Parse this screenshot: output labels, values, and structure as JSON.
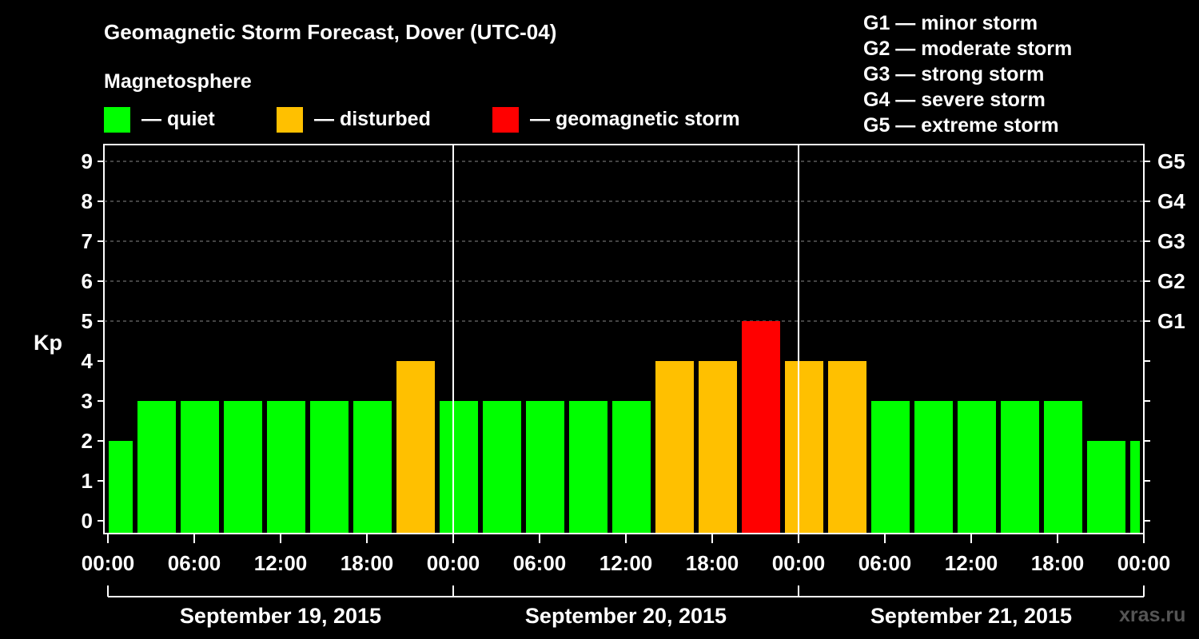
{
  "chart_data": {
    "type": "bar",
    "title": "Geomagnetic Storm Forecast, Dover (UTC-04)",
    "ylabel": "Kp",
    "ylim": [
      0,
      9
    ],
    "yticks": [
      "0",
      "1",
      "2",
      "3",
      "4",
      "5",
      "6",
      "7",
      "8",
      "9"
    ],
    "right_axis": [
      {
        "kp": 5,
        "label": "G1"
      },
      {
        "kp": 6,
        "label": "G2"
      },
      {
        "kp": 7,
        "label": "G3"
      },
      {
        "kp": 8,
        "label": "G4"
      },
      {
        "kp": 9,
        "label": "G5"
      }
    ],
    "xticks": [
      "00:00",
      "06:00",
      "12:00",
      "18:00",
      "00:00",
      "06:00",
      "12:00",
      "18:00",
      "00:00",
      "06:00",
      "12:00",
      "18:00",
      "00:00"
    ],
    "days": [
      "September 19, 2015",
      "September 20, 2015",
      "September 21, 2015"
    ],
    "hours_total": 72,
    "bars": [
      {
        "start": 0,
        "end": 2,
        "kp": 2,
        "level": "quiet"
      },
      {
        "start": 2,
        "end": 5,
        "kp": 3,
        "level": "quiet"
      },
      {
        "start": 5,
        "end": 8,
        "kp": 3,
        "level": "quiet"
      },
      {
        "start": 8,
        "end": 11,
        "kp": 3,
        "level": "quiet"
      },
      {
        "start": 11,
        "end": 14,
        "kp": 3,
        "level": "quiet"
      },
      {
        "start": 14,
        "end": 17,
        "kp": 3,
        "level": "quiet"
      },
      {
        "start": 17,
        "end": 20,
        "kp": 3,
        "level": "quiet"
      },
      {
        "start": 20,
        "end": 23,
        "kp": 4,
        "level": "disturbed"
      },
      {
        "start": 23,
        "end": 26,
        "kp": 3,
        "level": "quiet"
      },
      {
        "start": 26,
        "end": 29,
        "kp": 3,
        "level": "quiet"
      },
      {
        "start": 29,
        "end": 32,
        "kp": 3,
        "level": "quiet"
      },
      {
        "start": 32,
        "end": 35,
        "kp": 3,
        "level": "quiet"
      },
      {
        "start": 35,
        "end": 38,
        "kp": 3,
        "level": "quiet"
      },
      {
        "start": 38,
        "end": 41,
        "kp": 4,
        "level": "disturbed"
      },
      {
        "start": 41,
        "end": 44,
        "kp": 4,
        "level": "disturbed"
      },
      {
        "start": 44,
        "end": 47,
        "kp": 5,
        "level": "storm"
      },
      {
        "start": 47,
        "end": 50,
        "kp": 4,
        "level": "disturbed"
      },
      {
        "start": 50,
        "end": 53,
        "kp": 4,
        "level": "disturbed"
      },
      {
        "start": 53,
        "end": 56,
        "kp": 3,
        "level": "quiet"
      },
      {
        "start": 56,
        "end": 59,
        "kp": 3,
        "level": "quiet"
      },
      {
        "start": 59,
        "end": 62,
        "kp": 3,
        "level": "quiet"
      },
      {
        "start": 62,
        "end": 65,
        "kp": 3,
        "level": "quiet"
      },
      {
        "start": 65,
        "end": 68,
        "kp": 3,
        "level": "quiet"
      },
      {
        "start": 68,
        "end": 71,
        "kp": 2,
        "level": "quiet"
      },
      {
        "start": 71,
        "end": 72,
        "kp": 2,
        "level": "quiet"
      }
    ],
    "colors": {
      "quiet": "#00ff00",
      "disturbed": "#ffc000",
      "storm": "#ff0000"
    }
  },
  "legend": {
    "heading": "Magnetosphere",
    "items": [
      {
        "label": "— quiet",
        "color": "#00ff00"
      },
      {
        "label": "— disturbed",
        "color": "#ffc000"
      },
      {
        "label": "— geomagnetic storm",
        "color": "#ff0000"
      }
    ]
  },
  "storm_scale": [
    "G1 — minor storm",
    "G2 — moderate storm",
    "G3 — strong storm",
    "G4 — severe storm",
    "G5 — extreme storm"
  ],
  "watermark": "xras.ru"
}
